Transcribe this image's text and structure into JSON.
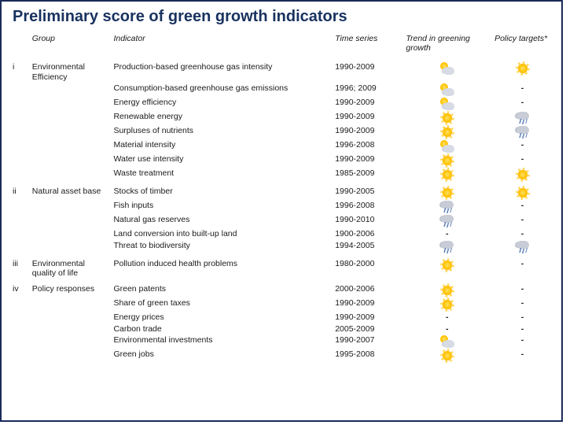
{
  "title": "Preliminary score of green growth indicators",
  "headers": {
    "group": "Group",
    "indicator": "Indicator",
    "time": "Time series",
    "trend": "Trend in greening growth",
    "policy": "Policy targets*"
  },
  "icons": {
    "sun": "sun",
    "partial": "partial",
    "rain": "rain",
    "dash": "-"
  },
  "rows": [
    {
      "section": true,
      "num": "i",
      "group": "Environmental Efficiency",
      "indicator": "Production-based greenhouse gas intensity",
      "time": "1990-2009",
      "trend": "partial",
      "policy": "sun"
    },
    {
      "indicator": "Consumption-based greenhouse gas emissions",
      "time": "1996; 2009",
      "trend": "partial",
      "policy": "dash"
    },
    {
      "indicator": "Energy efficiency",
      "time": "1990-2009",
      "trend": "partial",
      "policy": "dash"
    },
    {
      "indicator": "Renewable energy",
      "time": "1990-2009",
      "trend": "sun",
      "policy": "rain"
    },
    {
      "indicator": "Surpluses of nutrients",
      "time": "1990-2009",
      "trend": "sun",
      "policy": "rain"
    },
    {
      "indicator": "Material intensity",
      "time": "1996-2008",
      "trend": "partial",
      "policy": "dash"
    },
    {
      "indicator": "Water use intensity",
      "time": "1990-2009",
      "trend": "sun",
      "policy": "dash"
    },
    {
      "indicator": "Waste treatment",
      "time": "1985-2009",
      "trend": "sun",
      "policy": "sun"
    },
    {
      "section": true,
      "num": "ii",
      "group": "Natural asset base",
      "indicator": "Stocks of timber",
      "time": "1990-2005",
      "trend": "sun",
      "policy": "sun"
    },
    {
      "indicator": "Fish inputs",
      "time": "1996-2008",
      "trend": "rain",
      "policy": "dash"
    },
    {
      "indicator": "Natural gas reserves",
      "time": "1990-2010",
      "trend": "rain",
      "policy": "dash"
    },
    {
      "indicator": "Land conversion into built-up land",
      "time": "1900-2006",
      "trend": "dash",
      "policy": "dash"
    },
    {
      "indicator": "Threat to biodiversity",
      "time": "1994-2005",
      "trend": "rain",
      "policy": "rain"
    },
    {
      "section": true,
      "num": "iii",
      "group": "Environmental quality of life",
      "indicator": "Pollution induced health problems",
      "time": "1980-2000",
      "trend": "sun",
      "policy": "dash"
    },
    {
      "section": true,
      "num": "iv",
      "group": "Policy responses",
      "indicator": "Green patents",
      "time": "2000-2006",
      "trend": "sun",
      "policy": "dash"
    },
    {
      "indicator": "Share of green taxes",
      "time": "1990-2009",
      "trend": "sun",
      "policy": "dash"
    },
    {
      "indicator": "Energy prices",
      "time": "1990-2009",
      "trend": "dash",
      "policy": "dash"
    },
    {
      "indicator": "Carbon trade",
      "time": "2005-2009",
      "trend": "dash",
      "policy": "dash"
    },
    {
      "indicator": "Environmental investments",
      "time": "1990-2007",
      "trend": "partial",
      "policy": "dash"
    },
    {
      "indicator": "Green jobs",
      "time": "1995-2008",
      "trend": "sun",
      "policy": "dash"
    }
  ]
}
